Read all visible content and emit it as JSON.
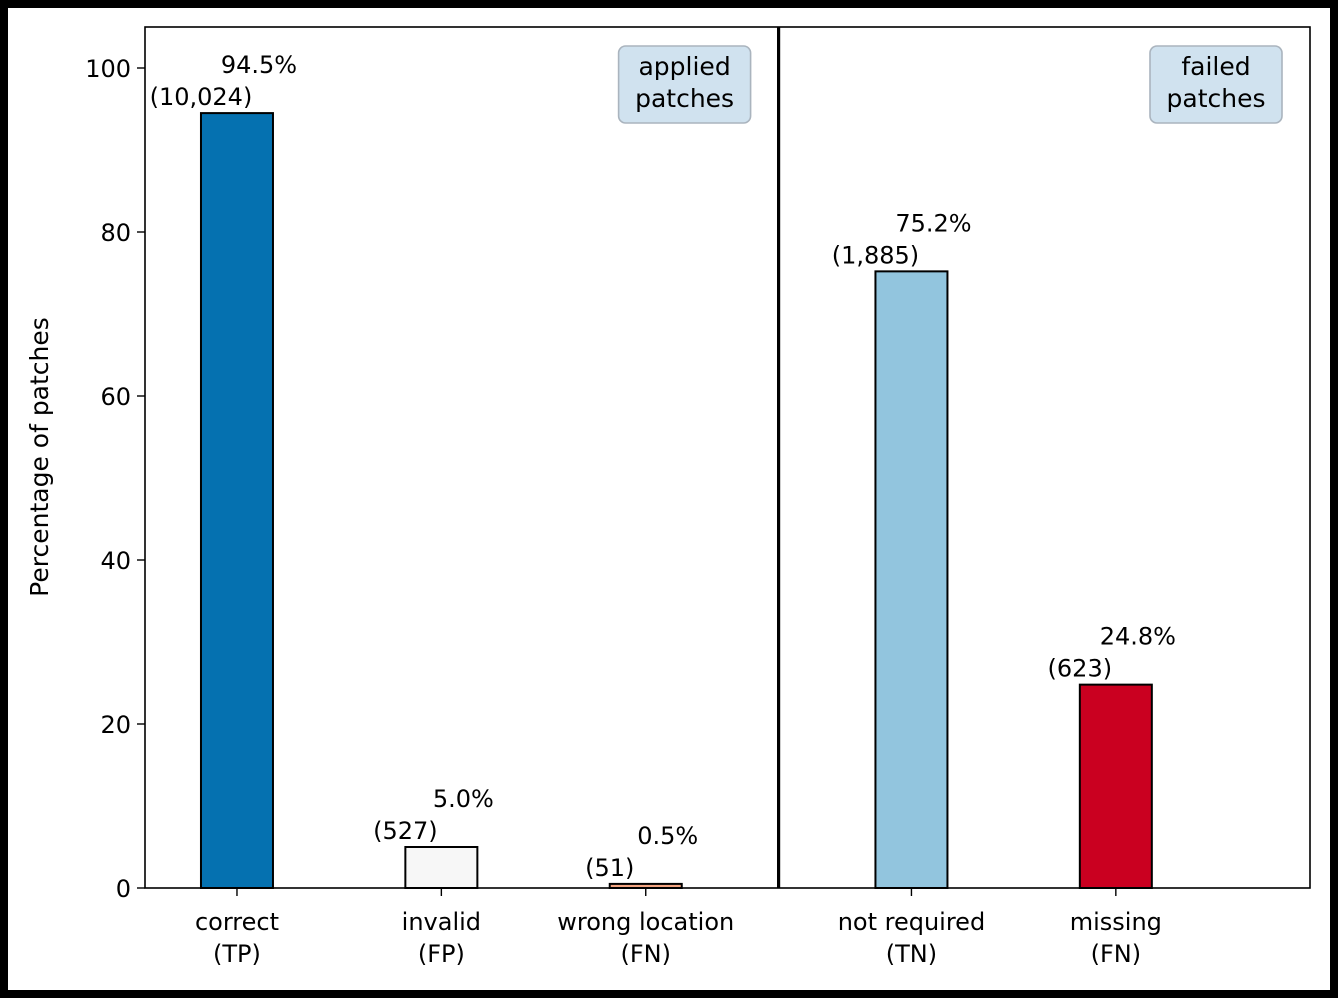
{
  "chart_data": {
    "type": "bar",
    "ylabel": "Percentage of patches",
    "ylim": [
      0,
      105
    ],
    "yticks": [
      0,
      20,
      40,
      60,
      80,
      100
    ],
    "grid": false,
    "groups": [
      {
        "label_lines": [
          "applied",
          "patches"
        ]
      },
      {
        "label_lines": [
          "failed",
          "patches"
        ]
      }
    ],
    "categories": [
      {
        "label_lines": [
          "correct",
          "(TP)"
        ],
        "value": 94.5,
        "value_label": "94.5%",
        "count_label": "(10,024)",
        "color": "#0571b0",
        "group": 0
      },
      {
        "label_lines": [
          "invalid",
          "(FP)"
        ],
        "value": 5.0,
        "value_label": "5.0%",
        "count_label": "(527)",
        "color": "#f7f7f7",
        "group": 0
      },
      {
        "label_lines": [
          "wrong location",
          "(FN)"
        ],
        "value": 0.5,
        "value_label": "0.5%",
        "count_label": "(51)",
        "color": "#f4a582",
        "group": 0
      },
      {
        "label_lines": [
          "not required",
          "(TN)"
        ],
        "value": 75.2,
        "value_label": "75.2%",
        "count_label": "(1,885)",
        "color": "#92c5de",
        "group": 1
      },
      {
        "label_lines": [
          "missing",
          "(FN)"
        ],
        "value": 24.8,
        "value_label": "24.8%",
        "count_label": "(623)",
        "color": "#ca0020",
        "group": 1
      }
    ],
    "group_box_color": "#d0e2ef",
    "group_box_border": "#aab4be"
  }
}
